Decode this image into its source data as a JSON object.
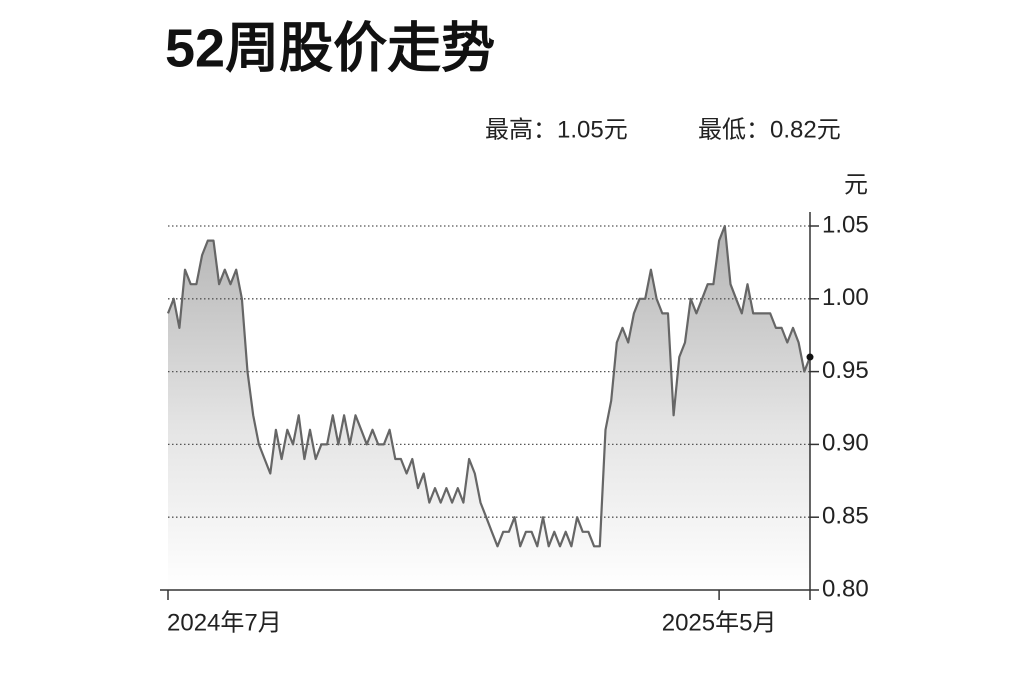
{
  "chart_data": {
    "type": "area",
    "title": "52周股价走势",
    "subtitle": [
      "最高：1.05元",
      "最低：0.82元"
    ],
    "y_label": "元",
    "color": "#666666",
    "grid": true,
    "categories": [
      "2024年7月",
      null,
      null,
      null,
      null,
      null,
      null,
      null,
      null,
      null,
      null,
      null,
      null,
      null,
      null,
      null,
      null,
      null,
      null,
      null,
      null,
      null,
      null,
      null,
      null,
      null,
      null,
      null,
      null,
      null,
      null,
      null,
      null,
      null,
      null,
      null,
      null,
      null,
      null,
      null,
      null,
      null,
      null,
      null,
      null,
      null,
      null,
      null,
      null,
      null,
      null,
      null,
      null,
      null,
      null,
      null,
      null,
      null,
      null,
      null,
      null,
      null,
      null,
      null,
      null,
      null,
      null,
      null,
      null,
      null,
      null,
      null,
      null,
      null,
      null,
      null,
      null,
      null,
      null,
      null,
      null,
      null,
      null,
      null,
      null,
      null,
      null,
      null,
      null,
      null,
      null,
      null,
      null,
      null,
      null,
      null,
      null,
      "2025年5月",
      null,
      null,
      null,
      null,
      null,
      null,
      null,
      null,
      null,
      null,
      null,
      null,
      null,
      null,
      null,
      null
    ],
    "values": [
      0.99,
      1.0,
      0.98,
      1.02,
      1.01,
      1.01,
      1.03,
      1.04,
      1.04,
      1.01,
      1.02,
      1.01,
      1.02,
      1.0,
      0.95,
      0.92,
      0.9,
      0.89,
      0.88,
      0.91,
      0.89,
      0.91,
      0.9,
      0.92,
      0.89,
      0.91,
      0.89,
      0.9,
      0.9,
      0.92,
      0.9,
      0.92,
      0.9,
      0.92,
      0.91,
      0.9,
      0.91,
      0.9,
      0.9,
      0.91,
      0.89,
      0.89,
      0.88,
      0.89,
      0.87,
      0.88,
      0.86,
      0.87,
      0.86,
      0.87,
      0.86,
      0.87,
      0.86,
      0.89,
      0.88,
      0.86,
      0.85,
      0.84,
      0.83,
      0.84,
      0.84,
      0.85,
      0.83,
      0.84,
      0.84,
      0.83,
      0.85,
      0.83,
      0.84,
      0.83,
      0.84,
      0.83,
      0.85,
      0.84,
      0.84,
      0.83,
      0.83,
      0.91,
      0.93,
      0.97,
      0.98,
      0.97,
      0.99,
      1.0,
      1.0,
      1.02,
      1.0,
      0.99,
      0.99,
      0.92,
      0.96,
      0.97,
      1.0,
      0.99,
      1.0,
      1.01,
      1.01,
      1.04,
      1.05,
      1.01,
      1.0,
      0.99,
      1.01,
      0.99,
      0.99,
      0.99,
      0.99,
      0.98,
      0.98,
      0.97,
      0.98,
      0.97,
      0.95,
      0.96
    ],
    "ylim": [
      0.8,
      1.05
    ],
    "yticks": [
      {
        "value": 0.8,
        "label": "0.80"
      },
      0.85,
      {
        "value": 0.9,
        "label": "0.90"
      },
      0.95,
      {
        "value": 1.0,
        "label": "1.00"
      },
      1.05
    ]
  }
}
